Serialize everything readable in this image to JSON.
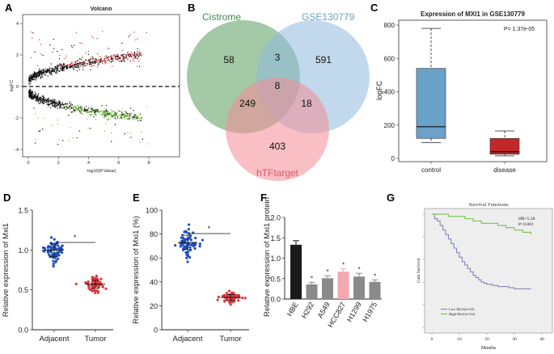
{
  "panel_labels": {
    "A": "A",
    "B": "B",
    "C": "C",
    "D": "D",
    "E": "E",
    "F": "F",
    "G": "G"
  },
  "volcano": {
    "title": "Volcano",
    "xlabel": "-log10(P.Value)",
    "ylabel": "logFC",
    "xticks": [
      "0",
      "2",
      "4",
      "6",
      "8"
    ],
    "yticks": [
      "4",
      "2",
      "0",
      "-2",
      "-4"
    ],
    "colors": {
      "up": "#e0383d",
      "down": "#7ccf3c",
      "ns": "#111111"
    }
  },
  "venn": {
    "sets": [
      {
        "name": "Cistrome",
        "color": "#3f8a4a",
        "fill": "#5a9c5e"
      },
      {
        "name": "GSE130779",
        "color": "#6aa1c8",
        "fill": "#8fbadf"
      },
      {
        "name": "hTFtarget",
        "color": "#e8707a",
        "fill": "#f48b93"
      }
    ],
    "regions": {
      "cistrome_only": "58",
      "cis_gse": "3",
      "gse_only": "591",
      "all_three": "8",
      "cis_htf": "249",
      "gse_htf": "18",
      "htf_only": "403"
    }
  },
  "chart_data": [
    {
      "type": "box",
      "panel": "C",
      "title": "Expression of MXI1 in GSE130779",
      "ylabel": "logFC",
      "ylim": [
        0,
        800
      ],
      "yticks": [
        "0",
        "200",
        "400",
        "600",
        "800"
      ],
      "categories": [
        "control",
        "disease"
      ],
      "pvalue": "P= 1.37e-05",
      "boxes": [
        {
          "name": "control",
          "min": 95,
          "q1": 120,
          "median": 190,
          "q3": 540,
          "max": 780,
          "color": "#6aa1c8"
        },
        {
          "name": "disease",
          "min": 15,
          "q1": 25,
          "median": 40,
          "q3": 120,
          "max": 165,
          "color": "#c0282a"
        }
      ]
    },
    {
      "type": "scatter",
      "panel": "D",
      "ylabel": "Relative expression of Mxi1",
      "ylim": [
        0,
        1.5
      ],
      "yticks": [
        "0.0",
        "0.5",
        "1.0",
        "1.5"
      ],
      "categories": [
        "Adjacent",
        "Tumor"
      ],
      "means": [
        1.0,
        0.57
      ],
      "sd": [
        0.08,
        0.05
      ],
      "significance": "*",
      "colors": [
        "#1f4fbd",
        "#e0383d"
      ]
    },
    {
      "type": "scatter",
      "panel": "E",
      "ylabel": "Relative expression of Mxi1 (%)",
      "ylim": [
        0,
        100
      ],
      "yticks": [
        "0",
        "20",
        "40",
        "60",
        "80",
        "100"
      ],
      "categories": [
        "Adjacent",
        "Tumor"
      ],
      "means": [
        73,
        27
      ],
      "sd": [
        6,
        2.5
      ],
      "significance": "*",
      "colors": [
        "#1f4fbd",
        "#e0383d"
      ]
    },
    {
      "type": "bar",
      "panel": "F",
      "ylabel": "Relative expression of Mxi1 protein",
      "ylim": [
        0,
        2.0
      ],
      "yticks": [
        "0.0",
        "0.5",
        "1.0",
        "1.5",
        "2.0"
      ],
      "categories": [
        "HBE",
        "H292",
        "A549",
        "HCC827",
        "H1299",
        "H1975"
      ],
      "values": [
        1.33,
        0.36,
        0.51,
        0.67,
        0.55,
        0.42
      ],
      "errors": [
        0.1,
        0.05,
        0.06,
        0.07,
        0.08,
        0.05
      ],
      "stars": [
        "",
        "*",
        "*",
        "*",
        "*",
        "*"
      ],
      "colors": [
        "#1a1a1a",
        "#8a8a8a",
        "#8a8a8a",
        "#f2a8ac",
        "#8a8a8a",
        "#8a8a8a"
      ]
    },
    {
      "type": "line",
      "panel": "G",
      "title": "Survival Functions",
      "xlabel": "Months",
      "ylabel": "Cum Survival",
      "xlim": [
        0,
        40
      ],
      "xticks": [
        "0",
        "10",
        "20",
        "30",
        "40"
      ],
      "ylim": [
        0,
        1.0
      ],
      "annotation": [
        "HR=5.28",
        "P<0.001"
      ],
      "legend": [
        "Low Mxi1(n=52)",
        "High Mxi1(n=52)"
      ],
      "series": [
        {
          "name": "Low Mxi1(n=52)",
          "color": "#7a7ab8",
          "x": [
            0,
            1,
            2,
            3,
            4,
            5,
            6,
            7,
            8,
            9,
            10,
            11,
            12,
            13,
            14,
            15,
            16,
            17,
            18,
            19,
            20,
            22,
            24,
            26,
            28,
            30,
            32,
            36
          ],
          "y": [
            1.0,
            0.96,
            0.94,
            0.9,
            0.86,
            0.82,
            0.78,
            0.74,
            0.7,
            0.66,
            0.62,
            0.58,
            0.55,
            0.52,
            0.49,
            0.46,
            0.44,
            0.42,
            0.4,
            0.39,
            0.38,
            0.37,
            0.36,
            0.36,
            0.35,
            0.34,
            0.34,
            0.34
          ]
        },
        {
          "name": "High Mxi1(n=52)",
          "color": "#6abf3c",
          "x": [
            0,
            3,
            6,
            9,
            12,
            15,
            18,
            21,
            24,
            27,
            30,
            33,
            36
          ],
          "y": [
            1.0,
            1.0,
            0.98,
            0.98,
            0.96,
            0.94,
            0.92,
            0.92,
            0.9,
            0.88,
            0.86,
            0.84,
            0.82
          ]
        }
      ]
    }
  ]
}
